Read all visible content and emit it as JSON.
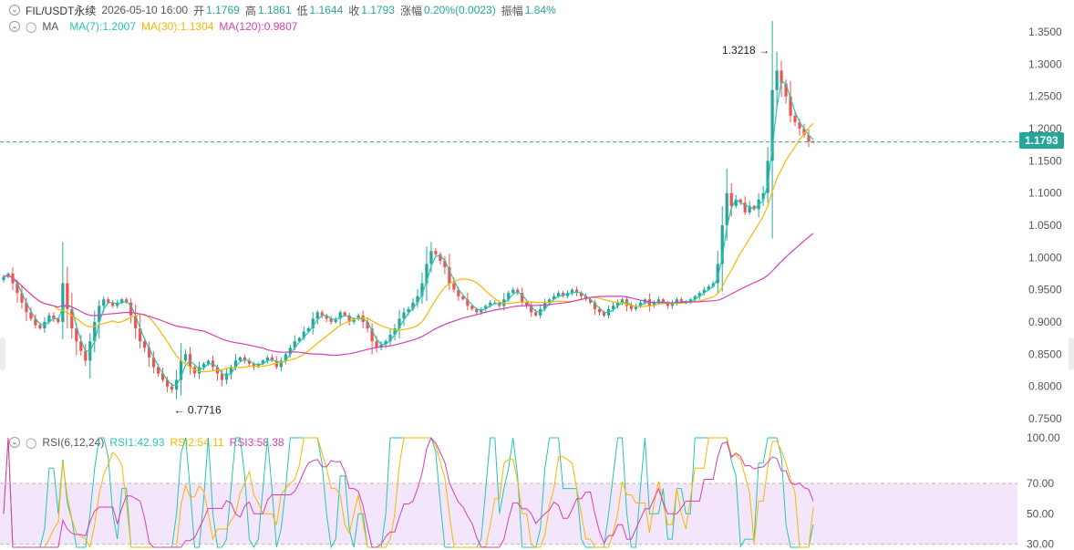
{
  "header": {
    "symbol": "FIL/USDT永续",
    "datetime": "2026-05-10 16:00",
    "open_label": "开",
    "open": "1.1769",
    "high_label": "高",
    "high": "1.1861",
    "low_label": "低",
    "low": "1.1644",
    "close_label": "收",
    "close": "1.1793",
    "change_label": "涨幅",
    "change": "0.20%(0.0023)",
    "amplitude_label": "振幅",
    "amplitude": "1.84%"
  },
  "ma_legend": {
    "title": "MA",
    "ma7": "MA(7):1.2007",
    "ma30": "MA(30):1.1304",
    "ma120": "MA(120):0.9807"
  },
  "rsi_legend": {
    "title": "RSI(6,12,24)",
    "rsi1": "RSI1:42.93",
    "rsi2": "RSI2:54.11",
    "rsi3": "RSI3:58.38"
  },
  "colors": {
    "up": "#26a69a",
    "down": "#ef5350",
    "ma7": "#26c6b0",
    "ma30": "#f5b800",
    "ma120": "#d63fb6",
    "rsi_band": "#f3e6fb"
  },
  "chart_data": [
    {
      "type": "candlestick",
      "title": "FIL/USDT永续",
      "ylim": [
        0.74,
        1.36
      ],
      "yticks": [
        "1.3500",
        "1.3000",
        "1.2500",
        "1.2000",
        "1.1500",
        "1.1000",
        "1.0500",
        "1.0000",
        "0.9500",
        "0.9000",
        "0.8500",
        "0.8000",
        "0.7500"
      ],
      "current_price": "1.1793",
      "max_label": "1.3218",
      "min_label": "0.7716",
      "max_value": 1.3218,
      "min_value": 0.7716,
      "close_series": [
        0.97,
        0.975,
        0.96,
        0.945,
        0.93,
        0.915,
        0.905,
        0.895,
        0.89,
        0.9,
        0.91,
        0.905,
        0.9,
        0.96,
        0.92,
        0.89,
        0.87,
        0.855,
        0.84,
        0.87,
        0.9,
        0.925,
        0.935,
        0.93,
        0.925,
        0.93,
        0.935,
        0.93,
        0.91,
        0.89,
        0.87,
        0.86,
        0.845,
        0.83,
        0.82,
        0.81,
        0.8,
        0.795,
        0.81,
        0.84,
        0.85,
        0.83,
        0.82,
        0.83,
        0.835,
        0.84,
        0.83,
        0.82,
        0.81,
        0.82,
        0.83,
        0.84,
        0.845,
        0.84,
        0.835,
        0.83,
        0.835,
        0.84,
        0.845,
        0.84,
        0.83,
        0.84,
        0.85,
        0.86,
        0.87,
        0.875,
        0.885,
        0.89,
        0.905,
        0.915,
        0.91,
        0.905,
        0.9,
        0.905,
        0.915,
        0.91,
        0.9,
        0.905,
        0.91,
        0.9,
        0.89,
        0.87,
        0.86,
        0.865,
        0.87,
        0.88,
        0.89,
        0.905,
        0.915,
        0.92,
        0.93,
        0.94,
        0.96,
        0.99,
        1.01,
        1.005,
        0.995,
        0.985,
        0.96,
        0.95,
        0.94,
        0.935,
        0.925,
        0.92,
        0.915,
        0.92,
        0.925,
        0.93,
        0.93,
        0.925,
        0.935,
        0.945,
        0.95,
        0.945,
        0.93,
        0.925,
        0.915,
        0.91,
        0.92,
        0.93,
        0.935,
        0.94,
        0.945,
        0.94,
        0.945,
        0.95,
        0.945,
        0.94,
        0.935,
        0.93,
        0.92,
        0.915,
        0.91,
        0.92,
        0.925,
        0.93,
        0.935,
        0.925,
        0.92,
        0.925,
        0.93,
        0.935,
        0.925,
        0.93,
        0.935,
        0.93,
        0.925,
        0.93,
        0.935,
        0.93,
        0.93,
        0.935,
        0.94,
        0.945,
        0.95,
        0.955,
        0.96,
        0.99,
        1.05,
        1.1,
        1.08,
        1.09,
        1.085,
        1.07,
        1.08,
        1.075,
        1.09,
        1.1,
        1.15,
        1.26,
        1.29,
        1.27,
        1.25,
        1.22,
        1.21,
        1.2,
        1.19,
        1.18,
        1.1793
      ],
      "ma7": "MA(7):1.2007",
      "ma30": "MA(30):1.1304",
      "ma120": "MA(120):0.9807"
    },
    {
      "type": "line",
      "title": "RSI(6,12,24)",
      "ylim": [
        28,
        100
      ],
      "yticks": [
        "100.00",
        "70.00",
        "50.00",
        "30.00"
      ],
      "band": [
        30,
        70
      ],
      "series": [
        {
          "name": "RSI1",
          "last": 42.93
        },
        {
          "name": "RSI2",
          "last": 54.11
        },
        {
          "name": "RSI3",
          "last": 58.38
        }
      ]
    }
  ]
}
